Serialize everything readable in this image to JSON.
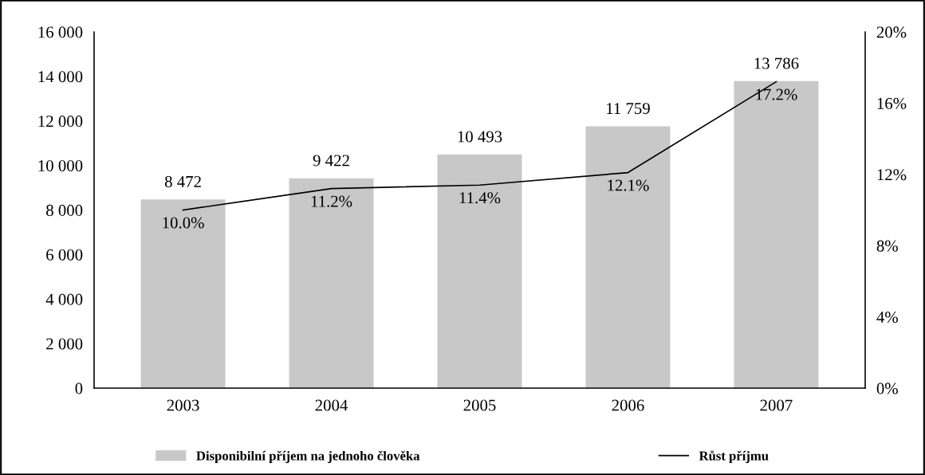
{
  "chart_data": {
    "type": "bar",
    "categories": [
      "2003",
      "2004",
      "2005",
      "2006",
      "2007"
    ],
    "series": [
      {
        "name": "Disponibilní příjem na jednoho člověka",
        "color": "#c8c8c8",
        "values": [
          8472,
          9422,
          10493,
          11759,
          13786
        ],
        "value_labels": [
          "8 472",
          "9 422",
          "10 493",
          "11 759",
          "13 786"
        ]
      },
      {
        "name": "Růst příjmu",
        "type": "line",
        "axis": "y2",
        "color": "#000000",
        "values": [
          10.0,
          11.2,
          11.4,
          12.1,
          17.2
        ],
        "value_labels": [
          "10.0%",
          "11.2%",
          "11.4%",
          "12.1%",
          "17.2%"
        ]
      }
    ],
    "ylim": [
      0,
      16000
    ],
    "yticks": [
      {
        "value": 0,
        "label": "0"
      },
      {
        "value": 2000,
        "label": "2 000"
      },
      {
        "value": 4000,
        "label": "4 000"
      },
      {
        "value": 6000,
        "label": "6 000"
      },
      {
        "value": 8000,
        "label": "8 000"
      },
      {
        "value": 10000,
        "label": "10 000"
      },
      {
        "value": 12000,
        "label": "12 000"
      },
      {
        "value": 14000,
        "label": "14 000"
      },
      {
        "value": 16000,
        "label": "16 000"
      }
    ],
    "y2lim": [
      0,
      20
    ],
    "y2ticks": [
      {
        "value": 0,
        "label": "0%"
      },
      {
        "value": 4,
        "label": "4%"
      },
      {
        "value": 8,
        "label": "8%"
      },
      {
        "value": 12,
        "label": "12%"
      },
      {
        "value": 16,
        "label": "16%"
      },
      {
        "value": 20,
        "label": "20%"
      }
    ],
    "grid": false,
    "legend": "bottom",
    "marker": "none",
    "line_style": "solid"
  }
}
